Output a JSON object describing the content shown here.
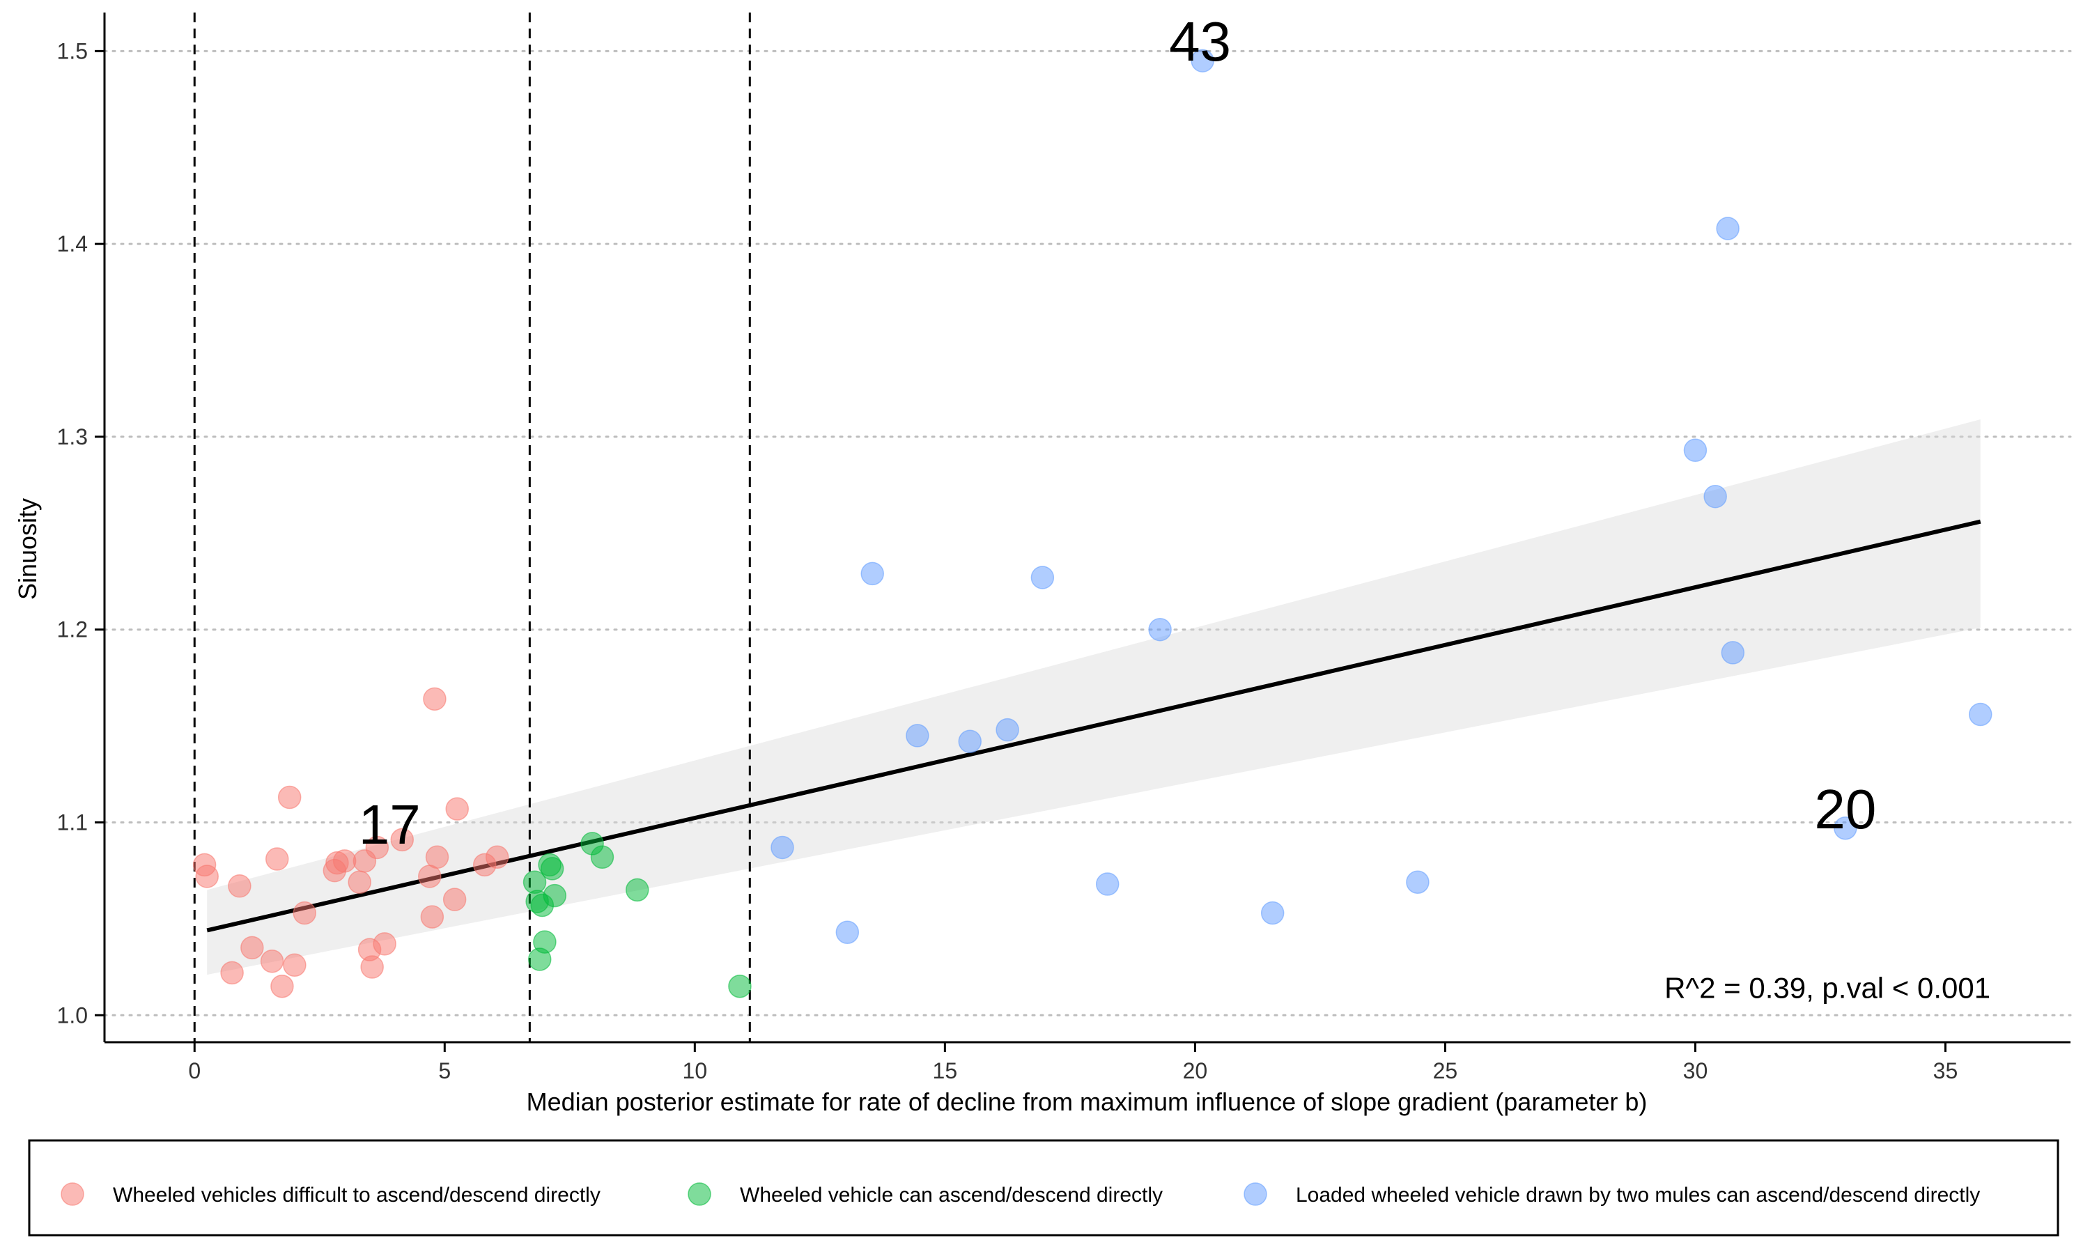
{
  "chart_data": {
    "type": "scatter",
    "title": "",
    "xlabel": "Median posterior estimate for rate of decline from maximum influence of slope gradient (parameter b)",
    "ylabel": "Sinuosity",
    "xlim": [
      -1.8,
      37.5
    ],
    "ylim": [
      0.986,
      1.52
    ],
    "x_ticks": [
      0,
      5,
      10,
      15,
      20,
      25,
      30,
      35
    ],
    "y_ticks": [
      1.0,
      1.1,
      1.2,
      1.3,
      1.4,
      1.5
    ],
    "x_tick_labels": [
      "0",
      "5",
      "10",
      "15",
      "20",
      "25",
      "30",
      "35"
    ],
    "y_tick_labels": [
      "1.0",
      "1.1",
      "1.2",
      "1.3",
      "1.4",
      "1.5"
    ],
    "grid": "horizontal dotted",
    "legend_position": "bottom",
    "vertical_lines": [
      0,
      6.7,
      11.1
    ],
    "annotations": [
      {
        "text": "17",
        "x": 3.9,
        "y": 1.089
      },
      {
        "text": "43",
        "x": 20.1,
        "y": 1.495
      },
      {
        "text": "20",
        "x": 33.0,
        "y": 1.097
      },
      {
        "text": "R^2 = 0.39, p.val < 0.001",
        "x": 35.9,
        "y": 1.009
      }
    ],
    "fit_line": {
      "x": [
        0.25,
        35.7
      ],
      "y": [
        1.044,
        1.256
      ]
    },
    "confidence_band": {
      "x": [
        0.25,
        35.7
      ],
      "upper": [
        1.065,
        1.309
      ],
      "lower": [
        1.021,
        1.201
      ]
    },
    "series": [
      {
        "name": "Wheeled vehicles difficult to ascend/descend directly",
        "color": "#f8766d",
        "x": [
          0.2,
          0.25,
          0.75,
          0.9,
          1.15,
          1.55,
          1.65,
          1.75,
          1.9,
          2.0,
          2.2,
          2.8,
          2.85,
          3.0,
          3.3,
          3.4,
          3.5,
          3.55,
          3.65,
          3.8,
          4.15,
          4.7,
          4.75,
          4.8,
          4.85,
          5.2,
          5.25,
          5.8,
          6.05
        ],
        "y": [
          1.078,
          1.072,
          1.022,
          1.067,
          1.035,
          1.028,
          1.081,
          1.015,
          1.113,
          1.026,
          1.053,
          1.075,
          1.079,
          1.08,
          1.069,
          1.08,
          1.034,
          1.025,
          1.087,
          1.037,
          1.091,
          1.072,
          1.051,
          1.164,
          1.082,
          1.06,
          1.107,
          1.078,
          1.082
        ]
      },
      {
        "name": "Wheeled vehicle can ascend/descend directly",
        "color": "#00ba38",
        "x": [
          6.8,
          6.85,
          6.9,
          6.95,
          7.0,
          7.1,
          7.15,
          7.2,
          7.95,
          8.15,
          8.85,
          10.9
        ],
        "y": [
          1.069,
          1.059,
          1.029,
          1.057,
          1.038,
          1.078,
          1.076,
          1.062,
          1.089,
          1.082,
          1.065,
          1.015
        ]
      },
      {
        "name": "Loaded wheeled vehicle drawn by two mules can ascend/descend directly",
        "color": "#619cff",
        "x": [
          11.75,
          13.05,
          13.55,
          14.45,
          15.5,
          16.25,
          16.95,
          18.25,
          19.3,
          20.15,
          21.55,
          24.45,
          30.0,
          30.4,
          30.65,
          30.75,
          33.0,
          35.7
        ],
        "y": [
          1.087,
          1.043,
          1.229,
          1.145,
          1.142,
          1.148,
          1.227,
          1.068,
          1.2,
          1.495,
          1.053,
          1.069,
          1.293,
          1.269,
          1.408,
          1.188,
          1.097,
          1.156
        ]
      }
    ]
  }
}
